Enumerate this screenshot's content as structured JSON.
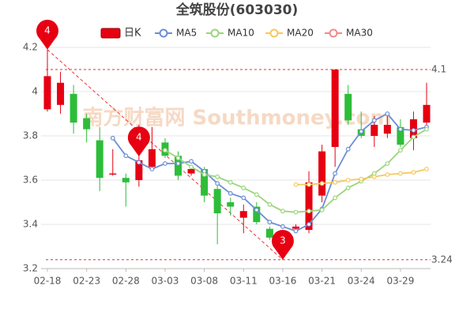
{
  "chart_data": {
    "type": "candlestick",
    "title": "全筑股份(603030)",
    "watermark": "南方财富网 Southmoney.com",
    "categories": [
      "02-18",
      null,
      null,
      "02-23",
      null,
      null,
      "02-28",
      null,
      null,
      "03-03",
      null,
      null,
      "03-08",
      null,
      null,
      "03-11",
      null,
      null,
      "03-16",
      null,
      null,
      "03-21",
      null,
      null,
      "03-24",
      null,
      null,
      "03-29",
      null,
      null
    ],
    "candles": {
      "name": "日K",
      "up_color": "#e60012",
      "down_color": "#2dbd3a",
      "open": [
        3.92,
        3.94,
        3.99,
        3.88,
        3.78,
        3.625,
        3.61,
        3.6,
        3.66,
        3.77,
        3.71,
        3.63,
        3.65,
        3.56,
        3.5,
        3.43,
        3.48,
        3.38,
        3.29,
        3.38,
        3.375,
        3.53,
        3.75,
        3.99,
        3.83,
        3.8,
        3.81,
        3.84,
        3.79,
        3.86
      ],
      "high": [
        4.19,
        4.09,
        4.03,
        3.9,
        3.84,
        3.74,
        3.63,
        3.85,
        3.84,
        3.79,
        3.73,
        3.66,
        3.66,
        3.59,
        3.52,
        3.49,
        3.5,
        3.39,
        3.36,
        3.4,
        3.64,
        3.76,
        4.1,
        4.03,
        3.91,
        3.89,
        3.89,
        3.875,
        3.91,
        4.04
      ],
      "low": [
        3.91,
        3.9,
        3.81,
        3.77,
        3.55,
        3.62,
        3.48,
        3.57,
        3.65,
        3.7,
        3.6,
        3.62,
        3.5,
        3.31,
        3.44,
        3.36,
        3.4,
        3.33,
        3.24,
        3.38,
        3.36,
        3.5,
        3.66,
        3.85,
        3.79,
        3.75,
        3.79,
        3.75,
        3.735,
        3.85
      ],
      "close": [
        4.07,
        4.04,
        3.86,
        3.83,
        3.61,
        3.63,
        3.59,
        3.69,
        3.74,
        3.71,
        3.62,
        3.65,
        3.53,
        3.45,
        3.48,
        3.46,
        3.41,
        3.34,
        3.34,
        3.39,
        3.59,
        3.73,
        4.1,
        3.87,
        3.8,
        3.85,
        3.85,
        3.76,
        3.875,
        3.94
      ]
    },
    "series": [
      {
        "name": "MA5",
        "color": "#6b8fd4",
        "values": [
          null,
          null,
          null,
          null,
          null,
          3.79,
          3.71,
          3.68,
          3.65,
          3.675,
          3.675,
          3.685,
          3.64,
          3.585,
          3.54,
          3.52,
          3.465,
          3.41,
          3.39,
          3.37,
          3.4,
          3.47,
          3.63,
          3.74,
          3.82,
          3.87,
          3.9,
          3.83,
          3.825,
          3.84
        ]
      },
      {
        "name": "MA10",
        "color": "#9bd57c",
        "values": [
          null,
          null,
          null,
          null,
          null,
          null,
          null,
          null,
          null,
          3.735,
          3.7,
          3.66,
          3.625,
          3.615,
          3.59,
          3.565,
          3.535,
          3.49,
          3.46,
          3.455,
          3.46,
          3.465,
          3.52,
          3.565,
          3.595,
          3.63,
          3.675,
          3.735,
          3.795,
          3.83
        ]
      },
      {
        "name": "MA20",
        "color": "#f6c85c",
        "values": [
          null,
          null,
          null,
          null,
          null,
          null,
          null,
          null,
          null,
          null,
          null,
          null,
          null,
          null,
          null,
          null,
          null,
          null,
          null,
          3.58,
          3.58,
          3.585,
          3.59,
          3.6,
          3.605,
          3.615,
          3.625,
          3.63,
          3.635,
          3.65
        ]
      },
      {
        "name": "MA30",
        "color": "#f08a8a",
        "values": [
          null,
          null,
          null,
          null,
          null,
          null,
          null,
          null,
          null,
          null,
          null,
          null,
          null,
          null,
          null,
          null,
          null,
          null,
          null,
          null,
          null,
          null,
          null,
          null,
          null,
          null,
          null,
          null,
          null,
          null
        ]
      }
    ],
    "hlines": [
      4.1,
      3.24
    ],
    "pins": [
      "4",
      "4",
      "3"
    ],
    "ylim": [
      3.2,
      4.2
    ],
    "yticks": [
      3.2,
      3.4,
      3.6,
      3.8,
      4,
      4.2
    ],
    "grid": true
  }
}
